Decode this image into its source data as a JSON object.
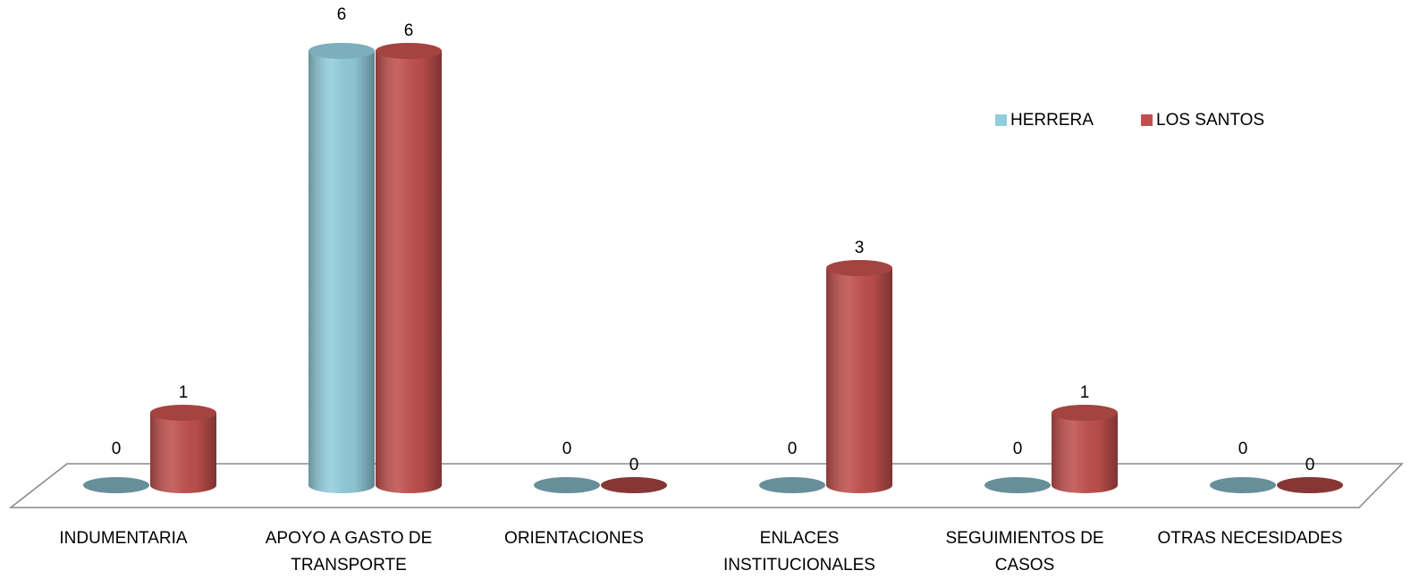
{
  "chart_data": {
    "type": "bar",
    "categories": [
      "INDUMENTARIA",
      "APOYO A GASTO DE TRANSPORTE",
      "ORIENTACIONES",
      "ENLACES INSTITUCIONALES",
      "SEGUIMIENTOS DE CASOS",
      "OTRAS NECESIDADES"
    ],
    "series": [
      {
        "name": "HERRERA",
        "color": "#92cddc",
        "values": [
          0,
          6,
          0,
          0,
          0,
          0
        ]
      },
      {
        "name": "LOS SANTOS",
        "color": "#c0504d",
        "values": [
          1,
          6,
          0,
          3,
          1,
          0
        ]
      }
    ]
  }
}
